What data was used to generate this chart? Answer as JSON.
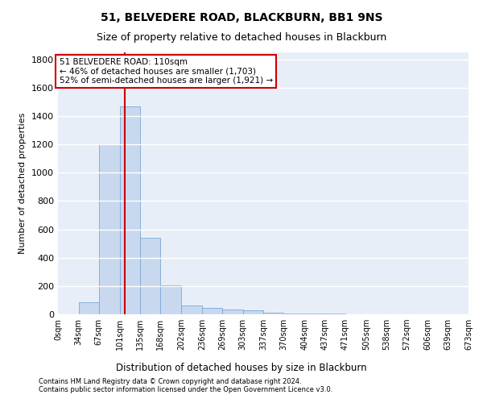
{
  "title": "51, BELVEDERE ROAD, BLACKBURN, BB1 9NS",
  "subtitle": "Size of property relative to detached houses in Blackburn",
  "xlabel_bottom": "Distribution of detached houses by size in Blackburn",
  "ylabel": "Number of detached properties",
  "footnote1": "Contains HM Land Registry data © Crown copyright and database right 2024.",
  "footnote2": "Contains public sector information licensed under the Open Government Licence v3.0.",
  "bar_color": "#c8d8ef",
  "bar_edge_color": "#7aa8d8",
  "background_color": "#e8eef8",
  "grid_color": "#ffffff",
  "bin_edges": [
    0,
    34,
    67,
    101,
    135,
    168,
    202,
    236,
    269,
    303,
    337,
    370,
    404,
    437,
    471,
    505,
    538,
    572,
    606,
    639,
    673
  ],
  "bin_labels": [
    "0sqm",
    "34sqm",
    "67sqm",
    "101sqm",
    "135sqm",
    "168sqm",
    "202sqm",
    "236sqm",
    "269sqm",
    "303sqm",
    "337sqm",
    "370sqm",
    "404sqm",
    "437sqm",
    "471sqm",
    "505sqm",
    "538sqm",
    "572sqm",
    "606sqm",
    "639sqm",
    "673sqm"
  ],
  "bar_heights": [
    0,
    88,
    1200,
    1470,
    540,
    205,
    65,
    45,
    35,
    28,
    10,
    8,
    5,
    3,
    2,
    1,
    1,
    0,
    0,
    0
  ],
  "property_size": 110,
  "vline_color": "#cc0000",
  "annotation_line1": "51 BELVEDERE ROAD: 110sqm",
  "annotation_line2": "← 46% of detached houses are smaller (1,703)",
  "annotation_line3": "52% of semi-detached houses are larger (1,921) →",
  "annotation_box_color": "#cc0000",
  "ylim": [
    0,
    1850
  ],
  "yticks": [
    0,
    200,
    400,
    600,
    800,
    1000,
    1200,
    1400,
    1600,
    1800
  ]
}
